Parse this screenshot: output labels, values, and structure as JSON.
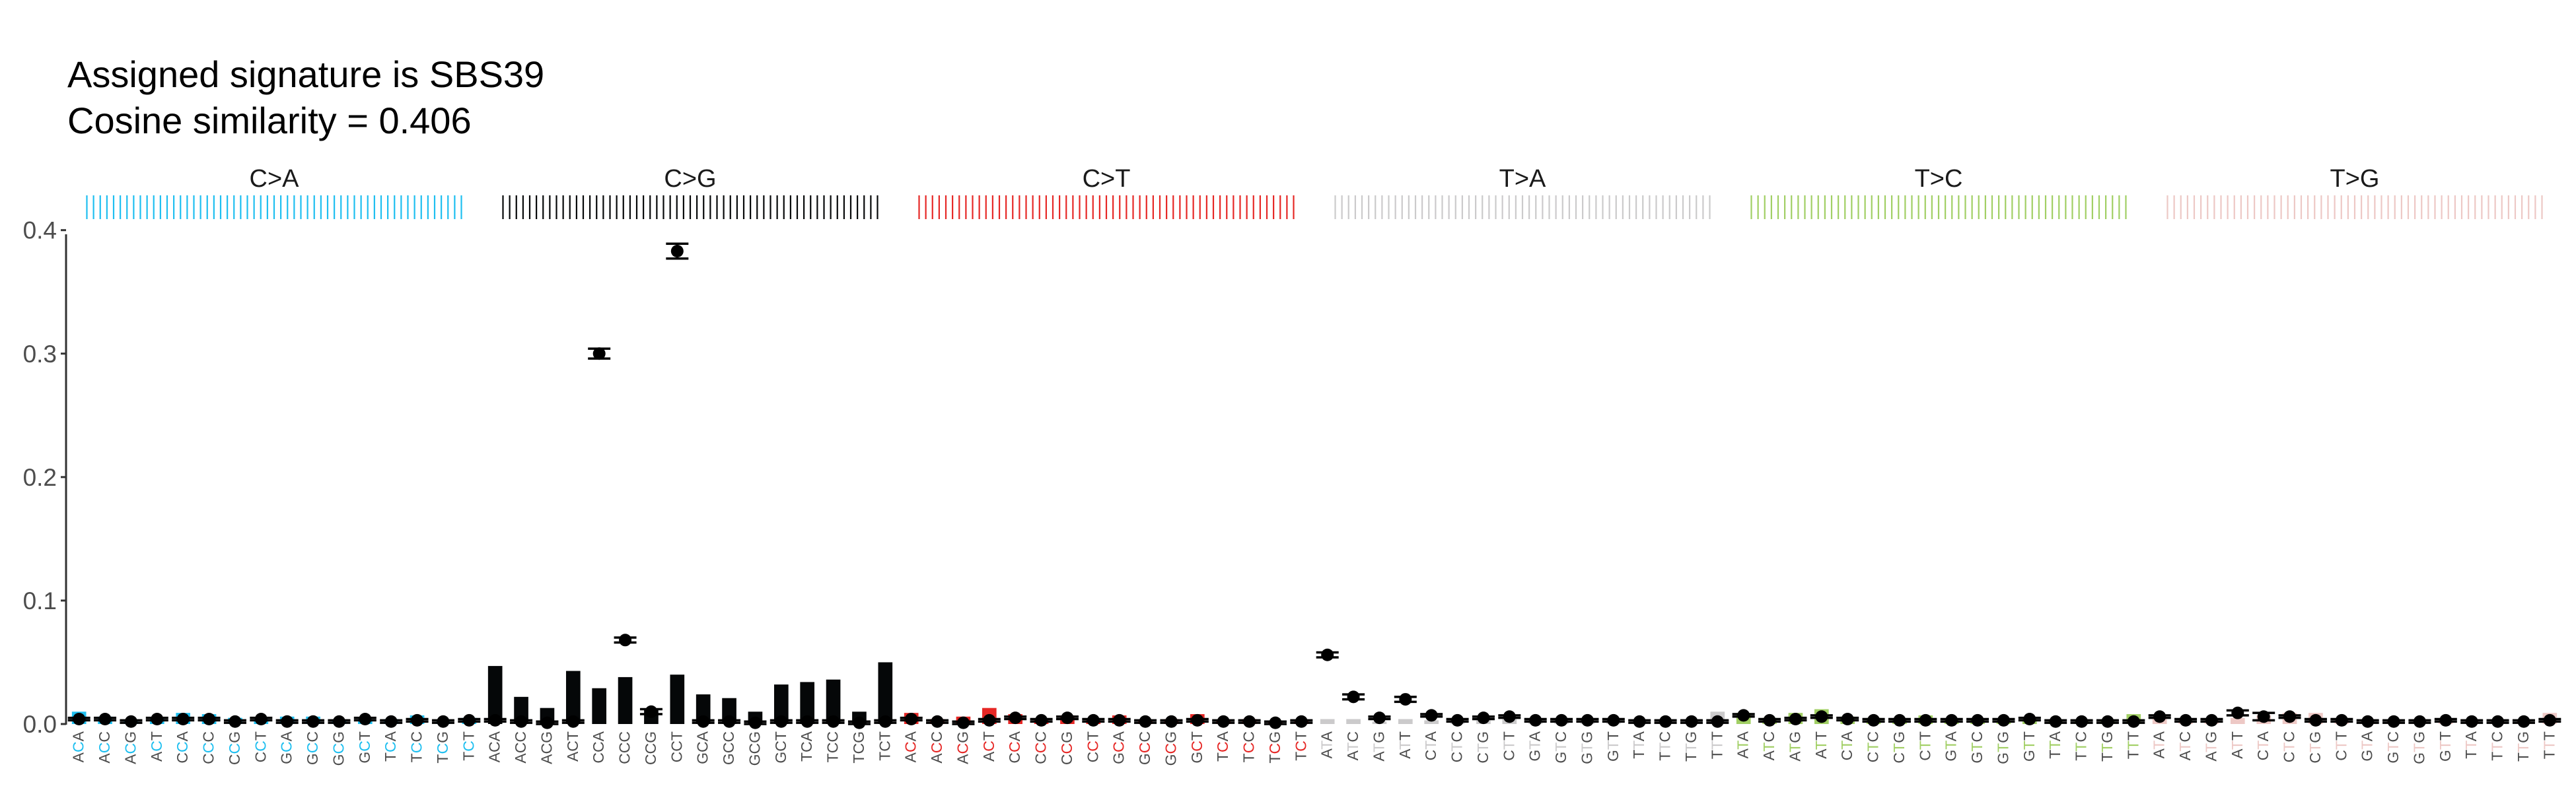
{
  "chart_data": {
    "type": "bar",
    "title": "Assigned signature is SBS39",
    "subtitle": "Cosine similarity = 0.406",
    "xlabel": "",
    "ylabel": "",
    "ylim": [
      0,
      0.41
    ],
    "yticks": [
      0.0,
      0.1,
      0.2,
      0.3,
      0.4
    ],
    "ytick_labels": [
      "0.0",
      "0.1",
      "0.2",
      "0.3",
      "0.4"
    ],
    "grid": false,
    "groups": [
      {
        "name": "C>A",
        "color": "#1EBFF0"
      },
      {
        "name": "C>G",
        "color": "#050708"
      },
      {
        "name": "C>T",
        "color": "#E62725"
      },
      {
        "name": "T>A",
        "color": "#CBCACB"
      },
      {
        "name": "T>C",
        "color": "#A1CF64"
      },
      {
        "name": "T>G",
        "color": "#EDC8C5"
      }
    ],
    "categories": [
      "ACA",
      "ACC",
      "ACG",
      "ACT",
      "CCA",
      "CCC",
      "CCG",
      "CCT",
      "GCA",
      "GCC",
      "GCG",
      "GCT",
      "TCA",
      "TCC",
      "TCG",
      "TCT",
      "ACA",
      "ACC",
      "ACG",
      "ACT",
      "CCA",
      "CCC",
      "CCG",
      "CCT",
      "GCA",
      "GCC",
      "GCG",
      "GCT",
      "TCA",
      "TCC",
      "TCG",
      "TCT",
      "ACA",
      "ACC",
      "ACG",
      "ACT",
      "CCA",
      "CCC",
      "CCG",
      "CCT",
      "GCA",
      "GCC",
      "GCG",
      "GCT",
      "TCA",
      "TCC",
      "TCG",
      "TCT",
      "ATA",
      "ATC",
      "ATG",
      "ATT",
      "CTA",
      "CTC",
      "CTG",
      "CTT",
      "GTA",
      "GTC",
      "GTG",
      "GTT",
      "TTA",
      "TTC",
      "TTG",
      "TTT",
      "ATA",
      "ATC",
      "ATG",
      "ATT",
      "CTA",
      "CTC",
      "CTG",
      "CTT",
      "GTA",
      "GTC",
      "GTG",
      "GTT",
      "TTA",
      "TTC",
      "TTG",
      "TTT",
      "ATA",
      "ATC",
      "ATG",
      "ATT",
      "CTA",
      "CTC",
      "CTG",
      "CTT",
      "GTA",
      "GTC",
      "GTG",
      "GTT",
      "TTA",
      "TTC",
      "TTG",
      "TTT"
    ],
    "series": [
      {
        "name": "",
        "role": "signature bars",
        "values": [
          0.01,
          0.006,
          0.003,
          0.005,
          0.009,
          0.008,
          0.005,
          0.004,
          0.006,
          0.006,
          0.003,
          0.004,
          0.004,
          0.007,
          0.002,
          0.005,
          0.047,
          0.022,
          0.013,
          0.043,
          0.029,
          0.038,
          0.012,
          0.04,
          0.024,
          0.021,
          0.01,
          0.032,
          0.034,
          0.036,
          0.01,
          0.05,
          0.009,
          0.004,
          0.006,
          0.013,
          0.008,
          0.004,
          0.007,
          0.004,
          0.007,
          0.003,
          0.004,
          0.008,
          0.003,
          0.004,
          0.002,
          0.003,
          0.004,
          0.004,
          0.002,
          0.004,
          0.003,
          0.004,
          0.003,
          0.005,
          0.002,
          0.003,
          0.002,
          0.003,
          0.002,
          0.003,
          0.002,
          0.01,
          0.009,
          0.005,
          0.009,
          0.012,
          0.006,
          0.005,
          0.004,
          0.007,
          0.004,
          0.004,
          0.003,
          0.004,
          0.003,
          0.003,
          0.003,
          0.008,
          0.005,
          0.003,
          0.004,
          0.005,
          0.007,
          0.009,
          0.009,
          0.004,
          0.003,
          0.003,
          0.004,
          0.003,
          0.003,
          0.003,
          0.003,
          0.009
        ]
      },
      {
        "name": "",
        "role": "sample points",
        "values": [
          0.004,
          0.004,
          0.002,
          0.004,
          0.004,
          0.004,
          0.002,
          0.004,
          0.002,
          0.002,
          0.002,
          0.004,
          0.002,
          0.003,
          0.002,
          0.003,
          0.003,
          0.002,
          0.001,
          0.002,
          0.3,
          0.068,
          0.01,
          0.383,
          0.002,
          0.002,
          0.001,
          0.002,
          0.002,
          0.002,
          0.001,
          0.002,
          0.004,
          0.002,
          0.001,
          0.003,
          0.005,
          0.003,
          0.005,
          0.003,
          0.003,
          0.002,
          0.002,
          0.003,
          0.002,
          0.002,
          0.001,
          0.002,
          0.056,
          0.022,
          0.005,
          0.02,
          0.007,
          0.003,
          0.005,
          0.006,
          0.003,
          0.003,
          0.003,
          0.003,
          0.002,
          0.002,
          0.002,
          0.002,
          0.007,
          0.003,
          0.004,
          0.006,
          0.004,
          0.003,
          0.003,
          0.003,
          0.003,
          0.003,
          0.003,
          0.004,
          0.002,
          0.002,
          0.002,
          0.002,
          0.006,
          0.003,
          0.003,
          0.009,
          0.006,
          0.006,
          0.003,
          0.003,
          0.002,
          0.002,
          0.002,
          0.003,
          0.002,
          0.002,
          0.002,
          0.003
        ],
        "errors": [
          0.001,
          0.001,
          0.001,
          0.001,
          0.001,
          0.001,
          0.001,
          0.001,
          0.001,
          0.001,
          0.001,
          0.001,
          0.001,
          0.001,
          0.001,
          0.001,
          0.001,
          0.001,
          0.001,
          0.001,
          0.004,
          0.002,
          0.002,
          0.006,
          0.001,
          0.001,
          0.001,
          0.001,
          0.001,
          0.001,
          0.001,
          0.001,
          0.001,
          0.001,
          0.001,
          0.001,
          0.001,
          0.001,
          0.001,
          0.001,
          0.001,
          0.001,
          0.001,
          0.001,
          0.001,
          0.001,
          0.001,
          0.001,
          0.002,
          0.002,
          0.001,
          0.002,
          0.001,
          0.001,
          0.001,
          0.001,
          0.001,
          0.001,
          0.001,
          0.001,
          0.001,
          0.001,
          0.001,
          0.001,
          0.001,
          0.001,
          0.001,
          0.001,
          0.001,
          0.001,
          0.001,
          0.001,
          0.001,
          0.001,
          0.001,
          0.001,
          0.001,
          0.001,
          0.001,
          0.001,
          0.001,
          0.001,
          0.001,
          0.002,
          0.003,
          0.001,
          0.001,
          0.001,
          0.001,
          0.001,
          0.001,
          0.001,
          0.001,
          0.001,
          0.001,
          0.001
        ]
      }
    ]
  }
}
